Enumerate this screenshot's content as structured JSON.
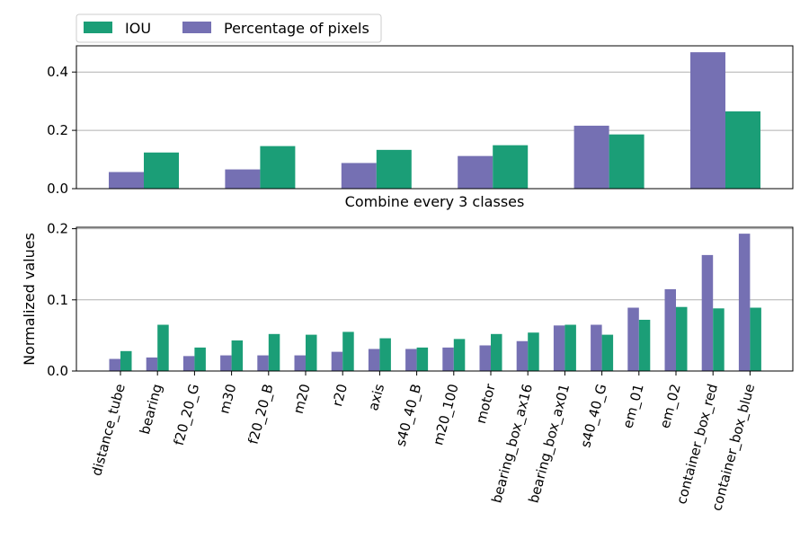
{
  "colors": {
    "iou": "#1b9e77",
    "pixels": "#7570b3",
    "grid": "#b0b0b0"
  },
  "legend": {
    "items": [
      {
        "label": "IOU",
        "color_key": "iou"
      },
      {
        "label": "Percentage of pixels",
        "color_key": "pixels"
      }
    ],
    "placement": "top-left outside"
  },
  "chart_data": [
    {
      "type": "bar",
      "title": "",
      "xlabel": "Combine every 3 classes",
      "ylabel": "",
      "categories": [
        "",
        "",
        "",
        "",
        "",
        ""
      ],
      "series": [
        {
          "name": "Percentage of pixels",
          "color_key": "pixels",
          "values": [
            0.057,
            0.066,
            0.088,
            0.112,
            0.216,
            0.468
          ]
        },
        {
          "name": "IOU",
          "color_key": "iou",
          "values": [
            0.124,
            0.146,
            0.133,
            0.149,
            0.186,
            0.265
          ]
        }
      ],
      "ylim": [
        0,
        0.49
      ],
      "yticks": [
        0.0,
        0.2,
        0.4
      ],
      "ytick_labels": [
        "0.0",
        "0.2",
        "0.4"
      ],
      "grid": "y"
    },
    {
      "type": "bar",
      "title": "",
      "xlabel": "",
      "ylabel": "Normalized values",
      "categories": [
        "distance_tube",
        "bearing",
        "f20_20_G",
        "m30",
        "f20_20_B",
        "m20",
        "r20",
        "axis",
        "s40_40_B",
        "m20_100",
        "motor",
        "bearing_box_ax16",
        "bearing_box_ax01",
        "s40_40_G",
        "em_01",
        "em_02",
        "container_box_red",
        "container_box_blue"
      ],
      "series": [
        {
          "name": "Percentage of pixels",
          "color_key": "pixels",
          "values": [
            0.017,
            0.019,
            0.021,
            0.022,
            0.022,
            0.022,
            0.027,
            0.031,
            0.031,
            0.033,
            0.036,
            0.042,
            0.064,
            0.065,
            0.089,
            0.115,
            0.163,
            0.193
          ]
        },
        {
          "name": "IOU",
          "color_key": "iou",
          "values": [
            0.028,
            0.065,
            0.033,
            0.043,
            0.052,
            0.051,
            0.055,
            0.046,
            0.033,
            0.045,
            0.052,
            0.054,
            0.065,
            0.051,
            0.072,
            0.09,
            0.088,
            0.089
          ]
        }
      ],
      "ylim": [
        0,
        0.202
      ],
      "yticks": [
        0.0,
        0.1,
        0.2
      ],
      "ytick_labels": [
        "0.0",
        "0.1",
        "0.2"
      ],
      "grid": "y"
    }
  ]
}
